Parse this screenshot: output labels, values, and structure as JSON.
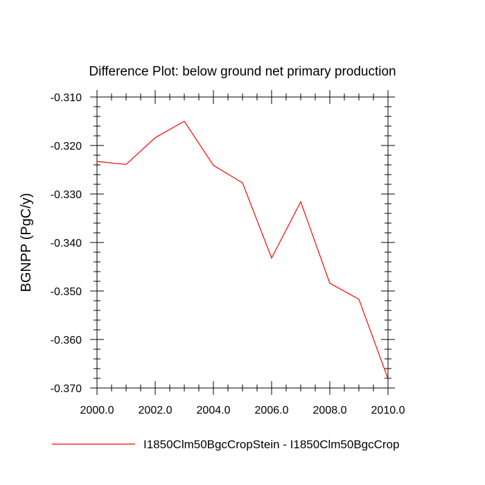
{
  "chart_data": {
    "type": "line",
    "title": "Difference Plot: below ground net primary production",
    "ylabel": "BGNPP  (PgC/y)",
    "xlabel": "",
    "xlim": [
      2000,
      2010
    ],
    "ylim": [
      -0.37,
      -0.31
    ],
    "x_ticks": [
      2000,
      2002,
      2004,
      2006,
      2008,
      2010
    ],
    "x_tick_labels": [
      "2000.0",
      "2002.0",
      "2004.0",
      "2006.0",
      "2008.0",
      "2010.0"
    ],
    "y_ticks": [
      -0.31,
      -0.32,
      -0.33,
      -0.34,
      -0.35,
      -0.36,
      -0.37
    ],
    "y_tick_labels": [
      "-0.310",
      "-0.320",
      "-0.330",
      "-0.340",
      "-0.350",
      "-0.360",
      "-0.370"
    ],
    "grid": false,
    "legend_position": "bottom",
    "series": [
      {
        "name": "I1850Clm50BgcCropStein - I1850Clm50BgcCrop",
        "color": "#ff0000",
        "x": [
          2000,
          2001,
          2002,
          2003,
          2004,
          2005,
          2006,
          2007,
          2008,
          2009,
          2010
        ],
        "y": [
          -0.3233,
          -0.3239,
          -0.3184,
          -0.315,
          -0.3241,
          -0.3277,
          -0.3432,
          -0.3316,
          -0.3484,
          -0.3517,
          -0.3681
        ]
      }
    ]
  }
}
